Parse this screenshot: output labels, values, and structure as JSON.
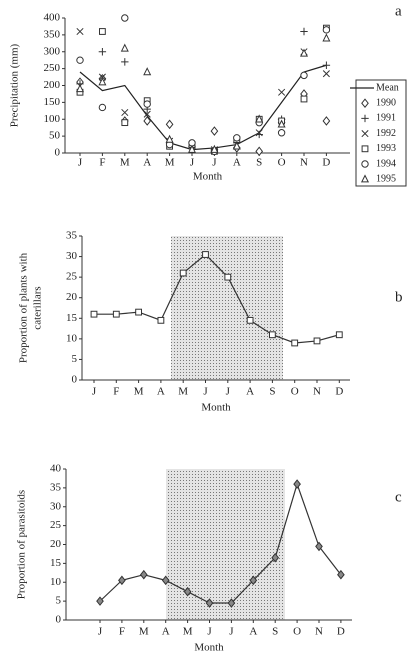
{
  "chart_data": [
    {
      "type": "line",
      "panel_label": "a",
      "ylabel": [
        "Precipitation (mm)"
      ],
      "xlabel": "Month",
      "categories": [
        "J",
        "F",
        "M",
        "A",
        "M",
        "J",
        "J",
        "A",
        "S",
        "O",
        "N",
        "D"
      ],
      "ylim": [
        0,
        400
      ],
      "yticks": [
        0,
        50,
        100,
        150,
        200,
        250,
        300,
        350,
        400
      ],
      "legend": "right",
      "series": [
        {
          "name": "Mean",
          "color": "#222",
          "marker": "none",
          "line": true,
          "values": [
            240,
            185,
            200,
            110,
            30,
            10,
            15,
            25,
            60,
            150,
            240,
            260
          ]
        },
        {
          "name": "1990",
          "color": "#333",
          "marker": "diamond",
          "line": false,
          "values": [
            210,
            220,
            95,
            95,
            85,
            15,
            65,
            15,
            5,
            90,
            175,
            95
          ]
        },
        {
          "name": "1991",
          "color": "#333",
          "marker": "plus",
          "line": false,
          "values": [
            205,
            300,
            270,
            130,
            30,
            20,
            10,
            30,
            55,
            100,
            360,
            260
          ]
        },
        {
          "name": "1992",
          "color": "#333",
          "marker": "x",
          "line": false,
          "values": [
            360,
            225,
            120,
            115,
            35,
            10,
            10,
            25,
            60,
            180,
            300,
            235
          ]
        },
        {
          "name": "1993",
          "color": "#333",
          "marker": "square",
          "line": false,
          "values": [
            180,
            360,
            90,
            155,
            20,
            25,
            5,
            40,
            100,
            95,
            160,
            370
          ]
        },
        {
          "name": "1994",
          "color": "#333",
          "marker": "circle",
          "line": false,
          "values": [
            275,
            135,
            400,
            145,
            25,
            30,
            5,
            45,
            90,
            60,
            230,
            365
          ]
        },
        {
          "name": "1995",
          "color": "#333",
          "marker": "triangle",
          "line": false,
          "values": [
            190,
            210,
            310,
            240,
            40,
            10,
            10,
            20,
            100,
            85,
            295,
            340
          ]
        }
      ]
    },
    {
      "type": "line",
      "panel_label": "b",
      "ylabel": [
        "Proportion of plants with",
        "caterillars"
      ],
      "xlabel": "Month",
      "categories": [
        "J",
        "F",
        "M",
        "A",
        "M",
        "J",
        "J",
        "A",
        "S",
        "O",
        "N",
        "D"
      ],
      "ylim": [
        0,
        35
      ],
      "yticks": [
        0,
        5,
        10,
        15,
        20,
        25,
        30,
        35
      ],
      "color": "#333",
      "marker": "square",
      "marker_fill": "#fff",
      "line": true,
      "values": [
        16,
        16,
        16.5,
        14.5,
        26,
        30.5,
        25,
        14.5,
        11,
        9,
        9.5,
        11
      ]
    },
    {
      "type": "line",
      "panel_label": "c",
      "ylabel": [
        "Proportion of parasitoids"
      ],
      "xlabel": "Month",
      "categories": [
        "J",
        "F",
        "M",
        "A",
        "M",
        "J",
        "J",
        "A",
        "S",
        "O",
        "N",
        "D"
      ],
      "ylim": [
        0,
        40
      ],
      "yticks": [
        0,
        5,
        10,
        15,
        20,
        25,
        30,
        35,
        40
      ],
      "color": "#333",
      "marker": "diamond",
      "marker_fill": "#888",
      "line": true,
      "values": [
        5,
        10.5,
        12,
        10.5,
        7.5,
        4.5,
        4.5,
        10.5,
        16.5,
        36,
        19.5,
        12
      ]
    }
  ]
}
